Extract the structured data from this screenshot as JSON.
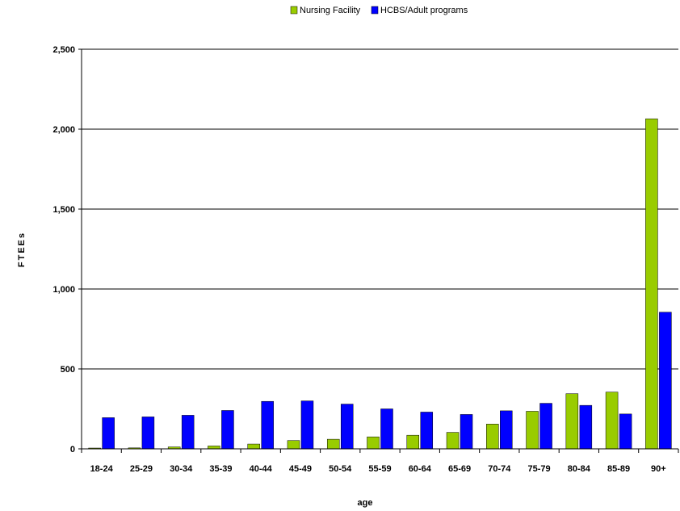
{
  "chart_data": {
    "type": "bar",
    "title": "",
    "xlabel": "age",
    "ylabel": "FTEEs",
    "categories": [
      "18-24",
      "25-29",
      "30-34",
      "35-39",
      "40-44",
      "45-49",
      "50-54",
      "55-59",
      "60-64",
      "65-69",
      "70-74",
      "75-79",
      "80-84",
      "85-89",
      "90+"
    ],
    "series": [
      {
        "name": "Nursing Facility",
        "color": "#99cc00",
        "values": [
          5,
          6,
          12,
          18,
          30,
          52,
          60,
          75,
          85,
          103,
          155,
          235,
          345,
          355,
          2065
        ]
      },
      {
        "name": "HCBS/Adult programs",
        "color": "#0000ff",
        "values": [
          195,
          200,
          210,
          240,
          297,
          300,
          280,
          250,
          230,
          215,
          238,
          285,
          272,
          218,
          855
        ]
      }
    ],
    "ylim": [
      0,
      2500
    ],
    "yticks": [
      0,
      500,
      1000,
      1500,
      2000,
      2500
    ],
    "ytick_labels": [
      "0",
      "500",
      "1,000",
      "1,500",
      "2,000",
      "2,500"
    ],
    "grid": true,
    "legend": "top-center"
  }
}
